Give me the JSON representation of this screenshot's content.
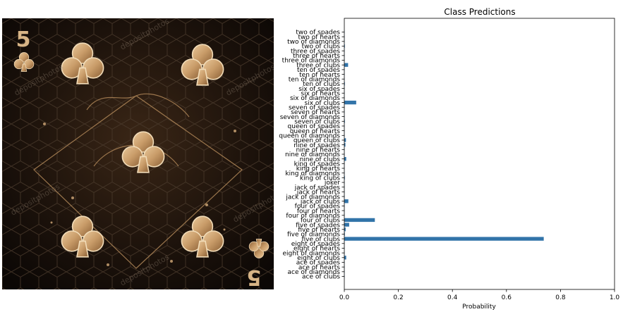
{
  "image_panel": {
    "corner_rank": "5",
    "watermark": "depositphotos"
  },
  "chart_data": {
    "type": "bar",
    "orientation": "horizontal",
    "title": "Class Predictions",
    "xlabel": "Probability",
    "ylabel": "",
    "xlim": [
      0,
      1.0
    ],
    "xticks": [
      "0.0",
      "0.2",
      "0.4",
      "0.6",
      "0.8",
      "1.0"
    ],
    "grid": false,
    "bar_color": "#3274a9",
    "categories": [
      "two of spades",
      "two of hearts",
      "two of diamonds",
      "two of clubs",
      "three of spades",
      "three of hearts",
      "three of diamonds",
      "three of clubs",
      "ten of spades",
      "ten of hearts",
      "ten of diamonds",
      "ten of clubs",
      "six of spades",
      "six of hearts",
      "six of diamonds",
      "six of clubs",
      "seven of spades",
      "seven of hearts",
      "seven of diamonds",
      "seven of clubs",
      "queen of spades",
      "queen of hearts",
      "queen of diamonds",
      "queen of clubs",
      "nine of spades",
      "nine of hearts",
      "nine of diamonds",
      "nine of clubs",
      "king of spades",
      "king of hearts",
      "king of diamonds",
      "king of clubs",
      "joker",
      "jack of spades",
      "jack of hearts",
      "jack of diamonds",
      "jack of clubs",
      "four of spades",
      "four of hearts",
      "four of diamonds",
      "four of clubs",
      "five of spades",
      "five of hearts",
      "five of diamonds",
      "five of clubs",
      "eight of spades",
      "eight of hearts",
      "eight of diamonds",
      "eight of clubs",
      "ace of spades",
      "ace of hearts",
      "ace of diamonds",
      "ace of clubs"
    ],
    "values": [
      0.001,
      0.001,
      0.001,
      0.002,
      0.001,
      0.001,
      0.001,
      0.014,
      0.001,
      0.001,
      0.001,
      0.002,
      0.001,
      0.001,
      0.001,
      0.044,
      0.001,
      0.001,
      0.001,
      0.002,
      0.001,
      0.001,
      0.001,
      0.006,
      0.004,
      0.001,
      0.001,
      0.007,
      0.001,
      0.001,
      0.001,
      0.002,
      0.001,
      0.001,
      0.001,
      0.001,
      0.015,
      0.001,
      0.001,
      0.001,
      0.113,
      0.018,
      0.005,
      0.002,
      0.738,
      0.001,
      0.001,
      0.001,
      0.007,
      0.001,
      0.001,
      0.001,
      0.001
    ]
  }
}
